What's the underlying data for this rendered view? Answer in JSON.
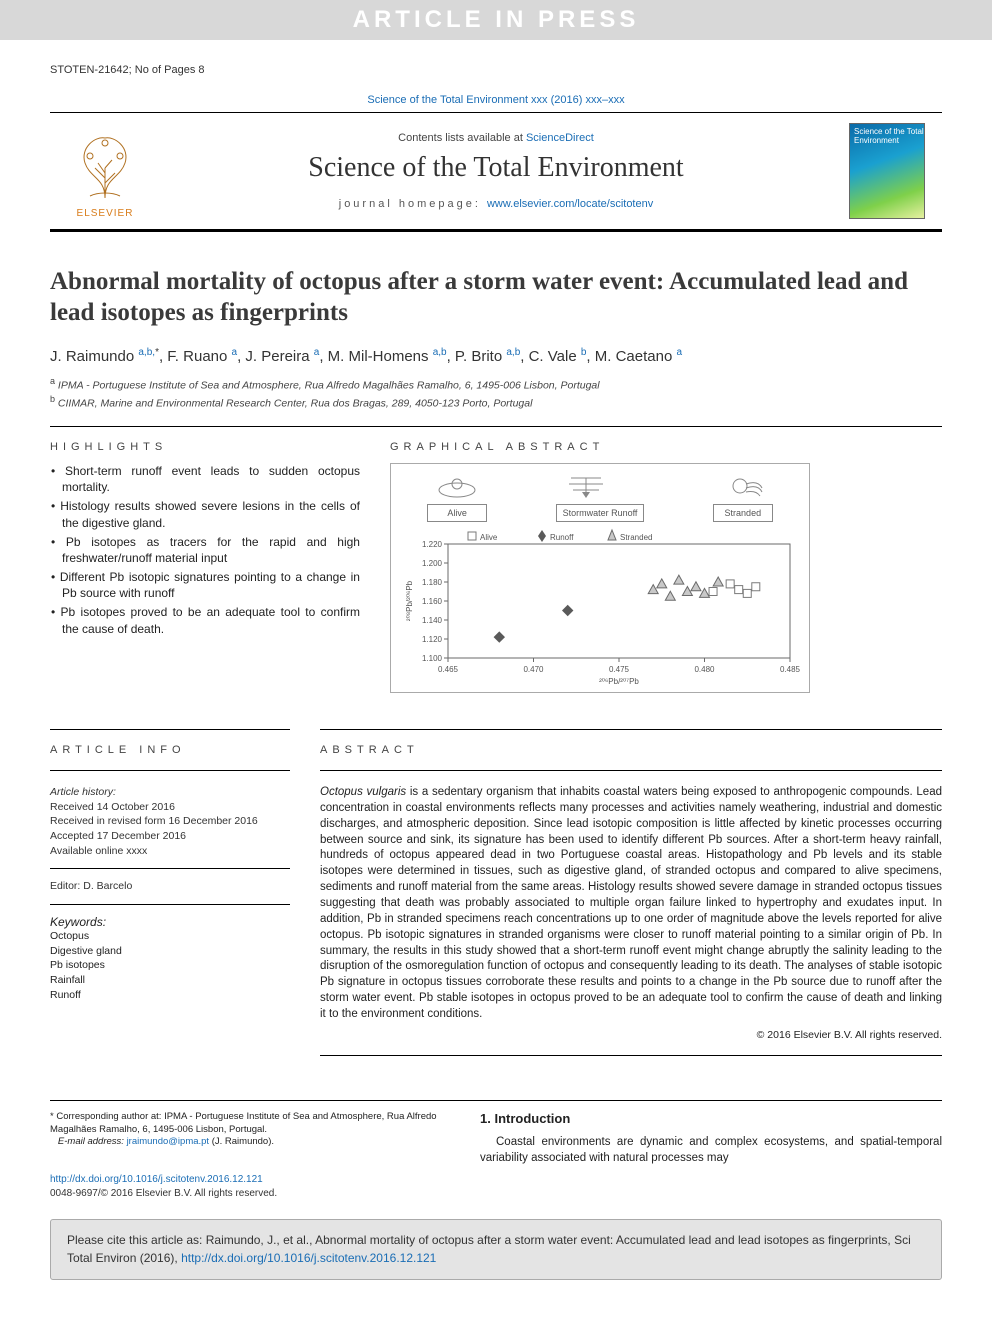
{
  "banner": "ARTICLE IN PRESS",
  "docid": "STOTEN-21642; No of Pages 8",
  "journal_ref": "Science of the Total Environment xxx (2016) xxx–xxx",
  "header": {
    "contents_line_pre": "Contents lists available at ",
    "contents_line_link": "ScienceDirect",
    "journal_title": "Science of the Total Environment",
    "homepage_pre": "journal homepage: ",
    "homepage_link": "www.elsevier.com/locate/scitotenv",
    "brand_left": "ELSEVIER",
    "cover_text": "Science of the Total Environment"
  },
  "title": "Abnormal mortality of octopus after a storm water event: Accumulated lead and lead isotopes as fingerprints",
  "authors_html": "J. Raimundo <sup>a,b,</sup><sup class='star'>*</sup>, F. Ruano <sup>a</sup>, J. Pereira <sup>a</sup>, M. Mil-Homens <sup>a,b</sup>, P. Brito <sup>a,b</sup>, C. Vale <sup>b</sup>, M. Caetano <sup>a</sup>",
  "affiliations": [
    {
      "key": "a",
      "text": "IPMA - Portuguese Institute of Sea and Atmosphere, Rua Alfredo Magalhães Ramalho, 6, 1495-006 Lisbon, Portugal"
    },
    {
      "key": "b",
      "text": "CIIMAR, Marine and Environmental Research Center, Rua dos Bragas, 289, 4050-123 Porto, Portugal"
    }
  ],
  "highlights_head": "HIGHLIGHTS",
  "highlights": [
    "Short-term runoff event leads to sudden octopus mortality.",
    "Histology results showed severe lesions in the cells of the digestive gland.",
    "Pb isotopes as tracers for the rapid and high freshwater/runoff material input",
    "Different Pb isotopic signatures pointing to a change in Pb source with runoff",
    "Pb isotopes proved to be an adequate tool to confirm the cause of death."
  ],
  "ga_head": "GRAPHICAL ABSTRACT",
  "ga": {
    "top_labels": [
      "Alive",
      "Stormwater Runoff",
      "Stranded"
    ],
    "legend": [
      {
        "label": "Alive",
        "marker": "square",
        "color": "#7a7a7a"
      },
      {
        "label": "Runoff",
        "marker": "diamond",
        "color": "#5a5a5a"
      },
      {
        "label": "Stranded",
        "marker": "triangle",
        "color": "#6a6a6a"
      }
    ],
    "chart": {
      "type": "scatter",
      "xlabel": "²⁰⁶Pb/²⁰⁷Pb",
      "ylabel": "²⁰⁸Pb/²⁰⁶Pb",
      "xlim": [
        0.465,
        0.485
      ],
      "ylim": [
        1.1,
        1.22
      ],
      "xticks": [
        0.465,
        0.47,
        0.475,
        0.48,
        0.485
      ],
      "yticks": [
        1.1,
        1.12,
        1.14,
        1.16,
        1.18,
        1.2,
        1.22
      ],
      "tick_fontsize": 8,
      "label_fontsize": 8,
      "background_color": "#ffffff",
      "axis_color": "#6a6a6a",
      "series": [
        {
          "name": "Alive",
          "marker": "square",
          "color": "#7a7a7a",
          "fill": "none",
          "points": [
            [
              0.4805,
              1.17
            ],
            [
              0.4815,
              1.178
            ],
            [
              0.482,
              1.172
            ],
            [
              0.4825,
              1.168
            ],
            [
              0.483,
              1.175
            ]
          ]
        },
        {
          "name": "Runoff",
          "marker": "diamond",
          "color": "#5a5a5a",
          "fill": "#5a5a5a",
          "points": [
            [
              0.468,
              1.122
            ],
            [
              0.472,
              1.15
            ]
          ]
        },
        {
          "name": "Stranded",
          "marker": "triangle",
          "color": "#6a6a6a",
          "fill": "#c8c8c8",
          "points": [
            [
              0.477,
              1.172
            ],
            [
              0.4775,
              1.178
            ],
            [
              0.478,
              1.165
            ],
            [
              0.4785,
              1.182
            ],
            [
              0.479,
              1.17
            ],
            [
              0.4795,
              1.175
            ],
            [
              0.48,
              1.168
            ],
            [
              0.4808,
              1.18
            ]
          ]
        }
      ]
    }
  },
  "article_info_head": "ARTICLE INFO",
  "article_info": {
    "history_label": "Article history:",
    "history": [
      "Received 14 October 2016",
      "Received in revised form 16 December 2016",
      "Accepted 17 December 2016",
      "Available online xxxx"
    ],
    "editor_label": "Editor: ",
    "editor": "D. Barcelo",
    "keywords_label": "Keywords:",
    "keywords": [
      "Octopus",
      "Digestive gland",
      "Pb isotopes",
      "Rainfall",
      "Runoff"
    ]
  },
  "abstract_head": "ABSTRACT",
  "abstract": "Octopus vulgaris is a sedentary organism that inhabits coastal waters being exposed to anthropogenic compounds. Lead concentration in coastal environments reflects many processes and activities namely weathering, industrial and domestic discharges, and atmospheric deposition. Since lead isotopic composition is little affected by kinetic processes occurring between source and sink, its signature has been used to identify different Pb sources. After a short-term heavy rainfall, hundreds of octopus appeared dead in two Portuguese coastal areas. Histopathology and Pb levels and its stable isotopes were determined in tissues, such as digestive gland, of stranded octopus and compared to alive specimens, sediments and runoff material from the same areas. Histology results showed severe damage in stranded octopus tissues suggesting that death was probably associated to multiple organ failure linked to hypertrophy and exudates input. In addition, Pb in stranded specimens reach concentrations up to one order of magnitude above the levels reported for alive octopus. Pb isotopic signatures in stranded organisms were closer to runoff material pointing to a similar origin of Pb. In summary, the results in this study showed that a short-term runoff event might change abruptly the salinity leading to the disruption of the osmoregulation function of octopus and consequently leading to its death. The analyses of stable isotopic Pb signature in octopus tissues corroborate these results and points to a change in the Pb source due to runoff after the storm water event. Pb stable isotopes in octopus proved to be an adequate tool to confirm the cause of death and linking it to the environment conditions.",
  "copyright": "© 2016 Elsevier B.V. All rights reserved.",
  "intro_head": "1. Introduction",
  "intro_text": "Coastal environments are dynamic and complex ecosystems, and spatial-temporal variability associated with natural processes may",
  "corresponding": {
    "star": "*",
    "text": " Corresponding author at: IPMA - Portuguese Institute of Sea and Atmosphere, Rua Alfredo Magalhães Ramalho, 6, 1495-006 Lisbon, Portugal.",
    "email_label": "E-mail address: ",
    "email": "jraimundo@ipma.pt",
    "email_suffix": " (J. Raimundo)."
  },
  "doi": {
    "link": "http://dx.doi.org/10.1016/j.scitotenv.2016.12.121",
    "issn": "0048-9697/© 2016 Elsevier B.V. All rights reserved."
  },
  "cite": {
    "pre": "Please cite this article as: Raimundo, J., et al., Abnormal mortality of octopus after a storm water event: Accumulated lead and lead isotopes as fingerprints, Sci Total Environ (2016), ",
    "link": "http://dx.doi.org/10.1016/j.scitotenv.2016.12.121"
  },
  "colors": {
    "link": "#1a6db5",
    "banner_bg": "#d8d8d8",
    "banner_text": "#ffffff",
    "text": "#222222",
    "cite_bg": "#e4e4e4"
  }
}
